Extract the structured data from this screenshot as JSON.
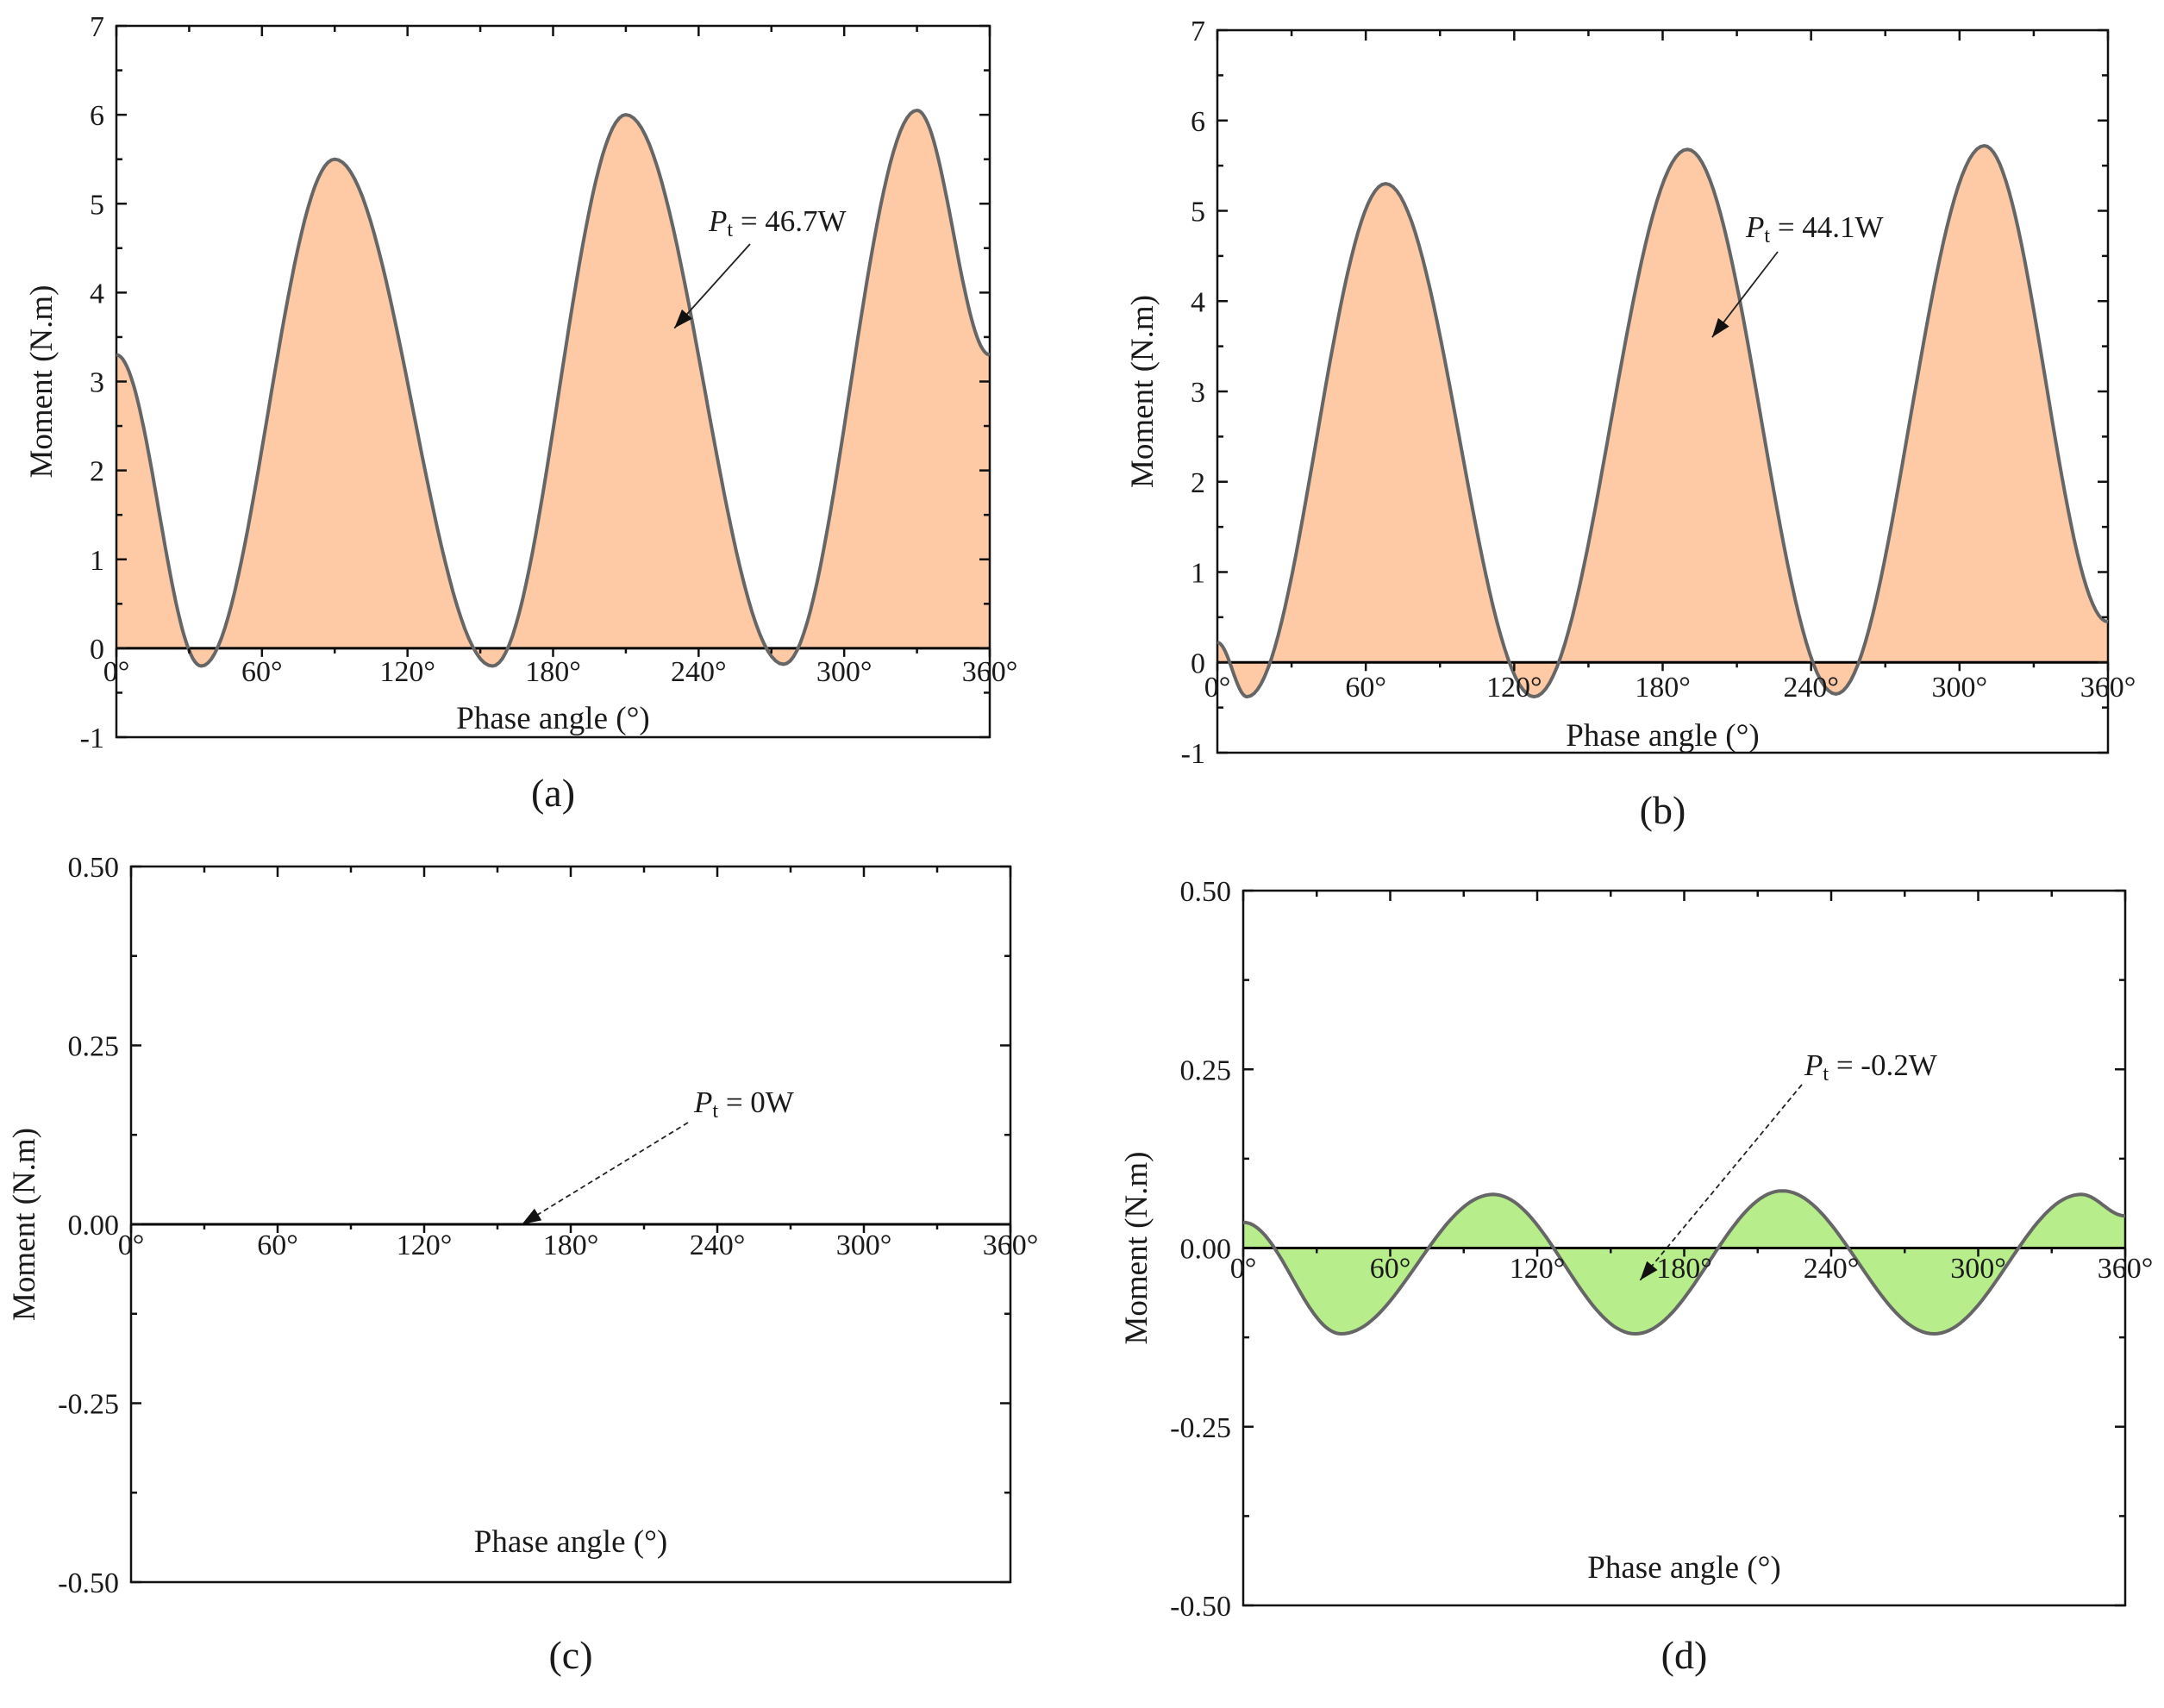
{
  "chart_data": [
    {
      "id": "a",
      "type": "area",
      "panel_label": "(a)",
      "xlabel": "Phase angle (°)",
      "ylabel": "Moment (N.m)",
      "xlim": [
        0,
        360
      ],
      "ylim": [
        -1,
        7
      ],
      "x_ticks": [
        0,
        60,
        120,
        180,
        240,
        300,
        360
      ],
      "x_tick_labels": [
        "0°",
        "60°",
        "120°",
        "180°",
        "240°",
        "300°",
        "360°"
      ],
      "y_ticks": [
        -1,
        0,
        1,
        2,
        3,
        4,
        5,
        6,
        7
      ],
      "y_tick_labels": [
        "-1",
        "0",
        "1",
        "2",
        "3",
        "4",
        "5",
        "6",
        "7"
      ],
      "fill_color": "#fdcaa5",
      "line_color": "#666666",
      "annotation": {
        "symbol": "P",
        "subscript": "t",
        "text": " = 46.7W",
        "arrow_to": [
          230,
          3.6
        ]
      },
      "series": [
        {
          "name": "Moment",
          "x": [
            0,
            35,
            90,
            155,
            210,
            275,
            330,
            360
          ],
          "y": [
            3.3,
            -0.2,
            5.5,
            -0.2,
            6.0,
            -0.18,
            6.05,
            3.3
          ]
        }
      ]
    },
    {
      "id": "b",
      "type": "area",
      "panel_label": "(b)",
      "xlabel": "Phase angle (°)",
      "ylabel": "Moment (N.m)",
      "xlim": [
        0,
        360
      ],
      "ylim": [
        -1,
        7
      ],
      "x_ticks": [
        0,
        60,
        120,
        180,
        240,
        300,
        360
      ],
      "x_tick_labels": [
        "0°",
        "60°",
        "120°",
        "180°",
        "240°",
        "300°",
        "360°"
      ],
      "y_ticks": [
        -1,
        0,
        1,
        2,
        3,
        4,
        5,
        6,
        7
      ],
      "y_tick_labels": [
        "-1",
        "0",
        "1",
        "2",
        "3",
        "4",
        "5",
        "6",
        "7"
      ],
      "fill_color": "#fdcaa5",
      "line_color": "#666666",
      "annotation": {
        "symbol": "P",
        "subscript": "t",
        "text": " = 44.1W",
        "arrow_to": [
          200,
          3.6
        ]
      },
      "series": [
        {
          "name": "Moment",
          "x": [
            0,
            12,
            68,
            128,
            190,
            250,
            310,
            360
          ],
          "y": [
            0.22,
            -0.38,
            5.3,
            -0.38,
            5.68,
            -0.35,
            5.72,
            0.45
          ]
        }
      ]
    },
    {
      "id": "c",
      "type": "area",
      "panel_label": "(c)",
      "xlabel": "Phase angle (°)",
      "ylabel": "Moment (N.m)",
      "xlim": [
        0,
        360
      ],
      "ylim": [
        -0.5,
        0.5
      ],
      "x_ticks": [
        0,
        60,
        120,
        180,
        240,
        300,
        360
      ],
      "x_tick_labels": [
        "0°",
        "60°",
        "120°",
        "180°",
        "240°",
        "300°",
        "360°"
      ],
      "y_ticks": [
        -0.5,
        -0.25,
        0,
        0.25,
        0.5
      ],
      "y_tick_labels": [
        "-0.50",
        "-0.25",
        "0.00",
        "0.25",
        "0.50"
      ],
      "fill_color": "#fdcaa5",
      "line_color": "#000000",
      "annotation": {
        "symbol": "P",
        "subscript": "t",
        "text": " = 0W",
        "arrow_to": [
          160,
          0.0
        ]
      },
      "series": [
        {
          "name": "Moment",
          "x": [
            0,
            360
          ],
          "y": [
            0,
            0
          ]
        }
      ]
    },
    {
      "id": "d",
      "type": "area",
      "panel_label": "(d)",
      "xlabel": "Phase angle (°)",
      "ylabel": "Moment (N.m)",
      "xlim": [
        0,
        360
      ],
      "ylim": [
        -0.5,
        0.5
      ],
      "x_ticks": [
        0,
        60,
        120,
        180,
        240,
        300,
        360
      ],
      "x_tick_labels": [
        "0°",
        "60°",
        "120°",
        "180°",
        "240°",
        "300°",
        "360°"
      ],
      "y_ticks": [
        -0.5,
        -0.25,
        0,
        0.25,
        0.5
      ],
      "y_tick_labels": [
        "-0.50",
        "-0.25",
        "0.00",
        "0.25",
        "0.50"
      ],
      "fill_color": "#b8ed8c",
      "line_color": "#666666",
      "annotation": {
        "symbol": "P",
        "subscript": "t",
        "text": " = -0.2W",
        "arrow_to": [
          162,
          -0.045
        ]
      },
      "series": [
        {
          "name": "Moment",
          "x": [
            0,
            40,
            102,
            160,
            220,
            282,
            342,
            360
          ],
          "y": [
            0.036,
            -0.12,
            0.075,
            -0.12,
            0.08,
            -0.12,
            0.075,
            0.045
          ]
        }
      ]
    }
  ]
}
